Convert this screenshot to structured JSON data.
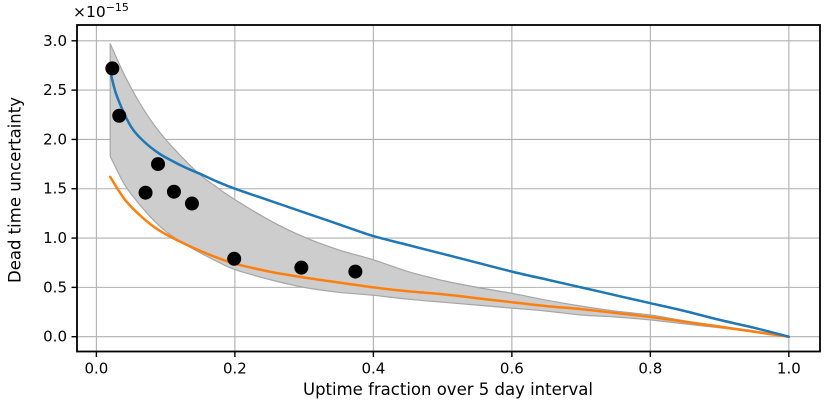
{
  "chart_data": {
    "type": "line",
    "title": "",
    "xlabel": "Uptime fraction over 5 day interval",
    "ylabel": "Dead time uncertainty",
    "y_offset_text": {
      "base": "×10",
      "exponent": "−15"
    },
    "xlim": [
      -0.028,
      1.045
    ],
    "ylim": [
      -0.15,
      3.16
    ],
    "xticks": [
      0.0,
      0.2,
      0.4,
      0.6,
      0.8,
      1.0
    ],
    "yticks": [
      0.0,
      0.5,
      1.0,
      1.5,
      2.0,
      2.5,
      3.0
    ],
    "tick_decimals": 1,
    "grid": true,
    "legend": "none",
    "colors": {
      "grid": "#b0b0b0",
      "axes": "#000000",
      "band_fill": "#cdcdcd",
      "band_edge": "#a6a6a6",
      "upper_line": "#1f77b4",
      "lower_line": "#ff7f0e",
      "scatter": "#000000"
    },
    "band": {
      "name": "uncertainty-band",
      "x": [
        0.02,
        0.04,
        0.06,
        0.08,
        0.1,
        0.125,
        0.15,
        0.175,
        0.2,
        0.25,
        0.3,
        0.35,
        0.4,
        0.45,
        0.5,
        0.55,
        0.6,
        0.65,
        0.7,
        0.75,
        0.8,
        0.85,
        0.9,
        0.95,
        1.0
      ],
      "top": [
        2.97,
        2.66,
        2.4,
        2.18,
        2.0,
        1.81,
        1.64,
        1.51,
        1.39,
        1.18,
        1.01,
        0.88,
        0.78,
        0.66,
        0.57,
        0.5,
        0.44,
        0.37,
        0.31,
        0.26,
        0.22,
        0.16,
        0.11,
        0.06,
        0.0
      ],
      "bottom": [
        1.83,
        1.55,
        1.36,
        1.2,
        1.07,
        0.95,
        0.85,
        0.76,
        0.68,
        0.58,
        0.5,
        0.45,
        0.42,
        0.38,
        0.35,
        0.32,
        0.29,
        0.26,
        0.22,
        0.2,
        0.17,
        0.13,
        0.09,
        0.05,
        0.0
      ]
    },
    "series": [
      {
        "name": "upper-bound-line",
        "color_key": "upper_line",
        "x": [
          0.021,
          0.03,
          0.05,
          0.07,
          0.09,
          0.11,
          0.13,
          0.15,
          0.175,
          0.2,
          0.25,
          0.3,
          0.35,
          0.4,
          0.45,
          0.5,
          0.55,
          0.6,
          0.65,
          0.7,
          0.75,
          0.8,
          0.85,
          0.9,
          0.95,
          1.0
        ],
        "y": [
          2.66,
          2.43,
          2.13,
          1.97,
          1.86,
          1.78,
          1.71,
          1.65,
          1.57,
          1.5,
          1.38,
          1.26,
          1.14,
          1.02,
          0.93,
          0.84,
          0.75,
          0.66,
          0.58,
          0.5,
          0.42,
          0.34,
          0.26,
          0.17,
          0.09,
          0.0
        ]
      },
      {
        "name": "lower-bound-line",
        "color_key": "lower_line",
        "x": [
          0.02,
          0.04,
          0.06,
          0.08,
          0.1,
          0.125,
          0.15,
          0.175,
          0.2,
          0.25,
          0.3,
          0.35,
          0.4,
          0.45,
          0.5,
          0.55,
          0.6,
          0.65,
          0.7,
          0.75,
          0.8,
          0.85,
          0.9,
          0.95,
          1.0
        ],
        "y": [
          1.62,
          1.4,
          1.25,
          1.13,
          1.04,
          0.95,
          0.87,
          0.8,
          0.74,
          0.66,
          0.6,
          0.55,
          0.5,
          0.46,
          0.43,
          0.39,
          0.35,
          0.31,
          0.28,
          0.24,
          0.2,
          0.15,
          0.1,
          0.05,
          0.0
        ]
      }
    ],
    "scatter": {
      "name": "measured-points",
      "marker_radius": 7,
      "points": [
        [
          0.023,
          2.72
        ],
        [
          0.033,
          2.24
        ],
        [
          0.089,
          1.75
        ],
        [
          0.071,
          1.46
        ],
        [
          0.112,
          1.47
        ],
        [
          0.138,
          1.35
        ],
        [
          0.199,
          0.79
        ],
        [
          0.296,
          0.7
        ],
        [
          0.374,
          0.66
        ]
      ]
    }
  }
}
